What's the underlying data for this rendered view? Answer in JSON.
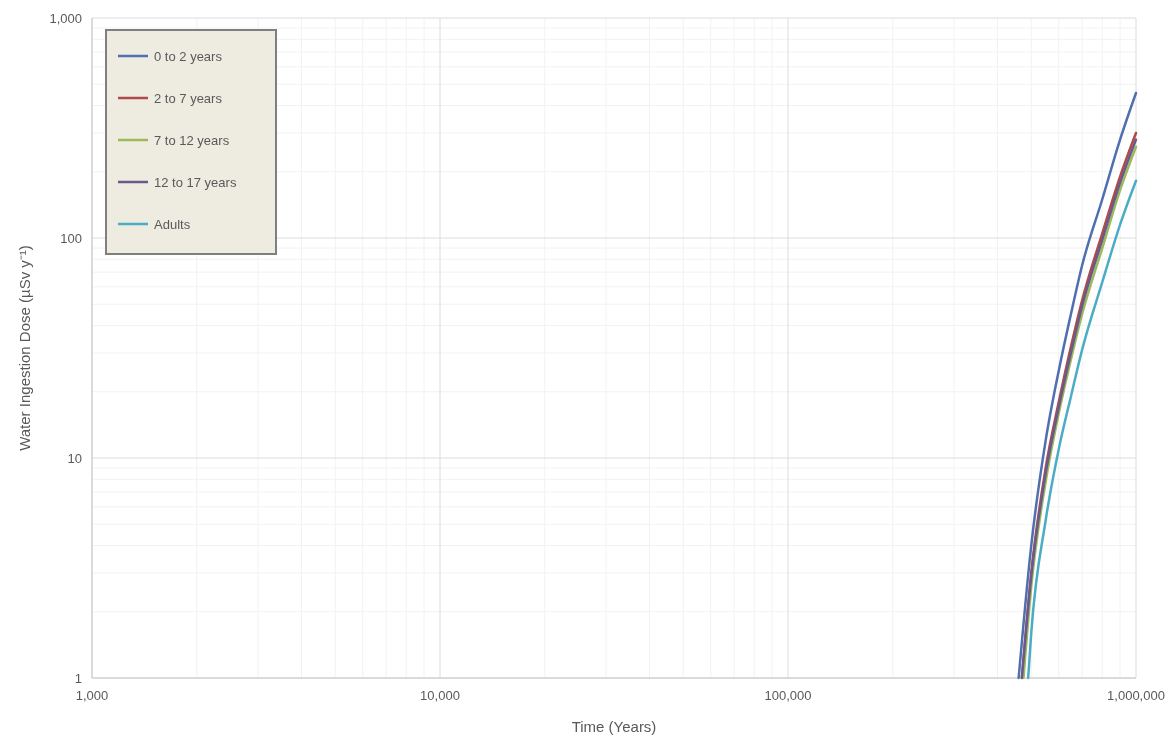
{
  "chart_data": {
    "type": "line",
    "xlabel": "Time (Years)",
    "ylabel": "Water Ingestion Dose (µSv y⁻¹)",
    "log": "xy",
    "grid": true,
    "legend": "top left",
    "marker": "none",
    "line_style": "solid",
    "xlim": [
      1000,
      1000000
    ],
    "xticks": [
      {
        "value": 1000,
        "label": "1,000"
      },
      {
        "value": 10000,
        "label": "10,000"
      },
      {
        "value": 100000,
        "label": "100,000"
      },
      {
        "value": 1000000,
        "label": "1,000,000"
      }
    ],
    "ylim": [
      1,
      1000
    ],
    "yticks": [
      1,
      10,
      100,
      {
        "value": 1000,
        "label": "1,000"
      }
    ],
    "series": [
      {
        "name": "0 to 2 years",
        "color": "#4f6fb0",
        "x": [
          460000,
          500000,
          550000,
          600000,
          650000,
          700000,
          800000,
          900000,
          1000000
        ],
        "values": [
          1,
          4,
          12,
          25,
          45,
          75,
          150,
          280,
          456
        ]
      },
      {
        "name": "2 to 7 years",
        "color": "#b04a4a",
        "x": [
          470000,
          500000,
          550000,
          600000,
          650000,
          700000,
          800000,
          900000,
          1000000
        ],
        "values": [
          1,
          3,
          9,
          18,
          32,
          52,
          105,
          190,
          300
        ]
      },
      {
        "name": "7 to 12 years",
        "color": "#9bbb59",
        "x": [
          475000,
          500000,
          550000,
          600000,
          650000,
          700000,
          800000,
          900000,
          1000000
        ],
        "values": [
          1,
          2.6,
          7.8,
          16,
          28,
          45,
          90,
          165,
          260
        ]
      },
      {
        "name": "12 to 17 years",
        "color": "#6a5a8a",
        "x": [
          470000,
          500000,
          550000,
          600000,
          650000,
          700000,
          800000,
          900000,
          1000000
        ],
        "values": [
          1,
          2.9,
          8.5,
          17,
          30,
          49,
          98,
          178,
          280
        ]
      },
      {
        "name": "Adults",
        "color": "#4bacc6",
        "x": [
          490000,
          500000,
          550000,
          600000,
          650000,
          700000,
          800000,
          900000,
          1000000
        ],
        "values": [
          1,
          1.6,
          5.2,
          11,
          19,
          31,
          63,
          115,
          182
        ]
      }
    ]
  }
}
